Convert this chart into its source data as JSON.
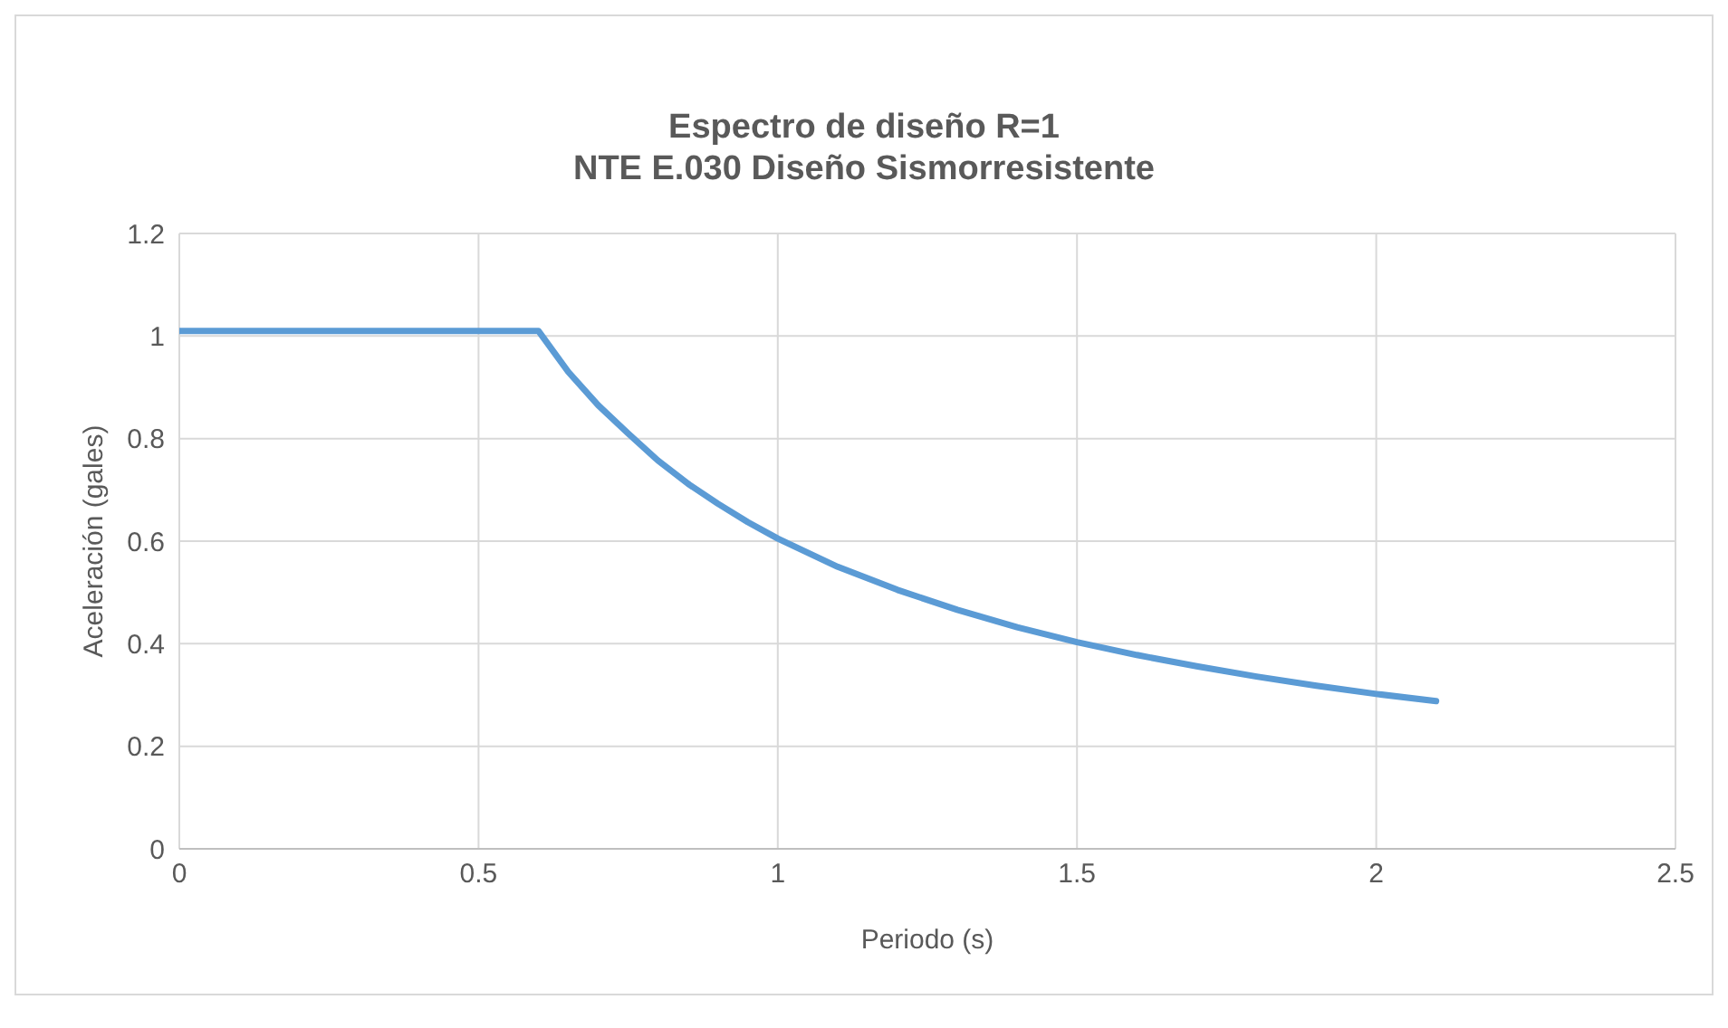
{
  "chart_data": {
    "type": "line",
    "title": "Espectro de diseño R=1\nNTE E.030 Diseño Sismorresistente",
    "xlabel": "Periodo (s)",
    "ylabel": "Aceleración (gales)",
    "x": [
      0,
      0.1,
      0.2,
      0.3,
      0.4,
      0.5,
      0.6,
      0.65,
      0.7,
      0.75,
      0.8,
      0.85,
      0.9,
      0.95,
      1.0,
      1.1,
      1.2,
      1.3,
      1.4,
      1.5,
      1.6,
      1.7,
      1.8,
      1.9,
      2.0,
      2.1
    ],
    "series": [
      {
        "color": "#5b9bd5",
        "values": [
          1.01,
          1.01,
          1.01,
          1.01,
          1.01,
          1.01,
          1.01,
          0.93,
          0.865,
          0.81,
          0.757,
          0.712,
          0.673,
          0.637,
          0.605,
          0.55,
          0.505,
          0.466,
          0.432,
          0.403,
          0.378,
          0.356,
          0.336,
          0.318,
          0.302,
          0.288
        ]
      }
    ],
    "xlim": [
      0,
      2.5
    ],
    "xticks": [
      0,
      0.5,
      1,
      1.5,
      2,
      2.5
    ],
    "ylim": [
      0,
      1.2
    ],
    "yticks": [
      0,
      0.2,
      0.4,
      0.6,
      0.8,
      1,
      1.2
    ],
    "grid": true,
    "legend": false,
    "marker": "none",
    "line_style": "solid"
  }
}
